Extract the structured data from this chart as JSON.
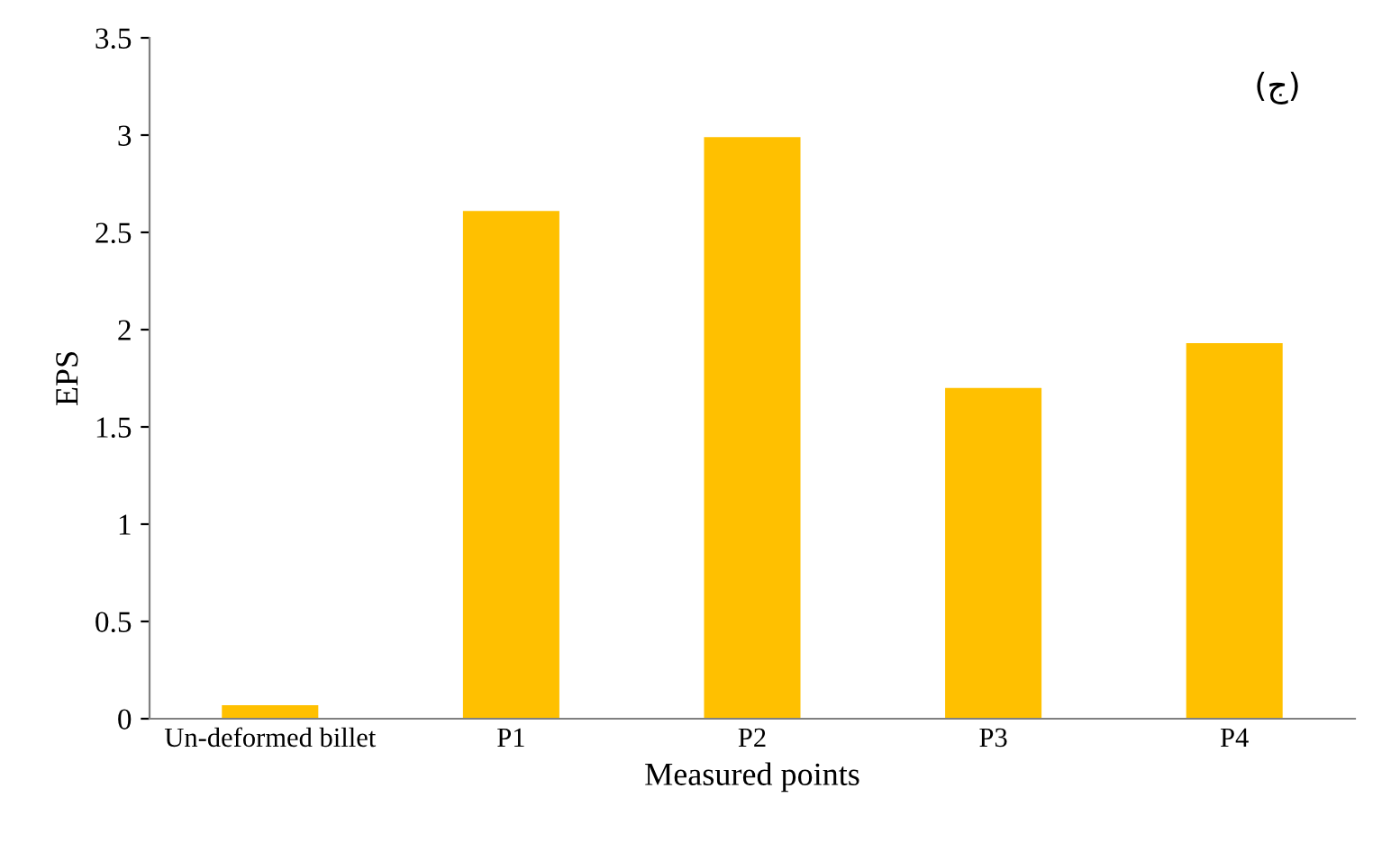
{
  "chart_data": {
    "type": "bar",
    "xlabel": "Measured points",
    "ylabel": "EPS",
    "categories": [
      "Un-deformed billet",
      "P1",
      "P2",
      "P3",
      "P4"
    ],
    "values": [
      0.07,
      2.61,
      2.99,
      1.7,
      1.93
    ],
    "color": "#ffc000",
    "ylim": [
      0,
      3.5
    ],
    "yticks": [
      0,
      {
        "value": 0.5,
        "label": "0.5"
      },
      1,
      {
        "value": 1.5,
        "label": "1.5"
      },
      2,
      {
        "value": 2.5,
        "label": "2.5"
      },
      3,
      {
        "value": 3.5,
        "label": "3.5"
      }
    ],
    "grid": false,
    "legend": false,
    "annotations": [
      "(ج)"
    ]
  }
}
